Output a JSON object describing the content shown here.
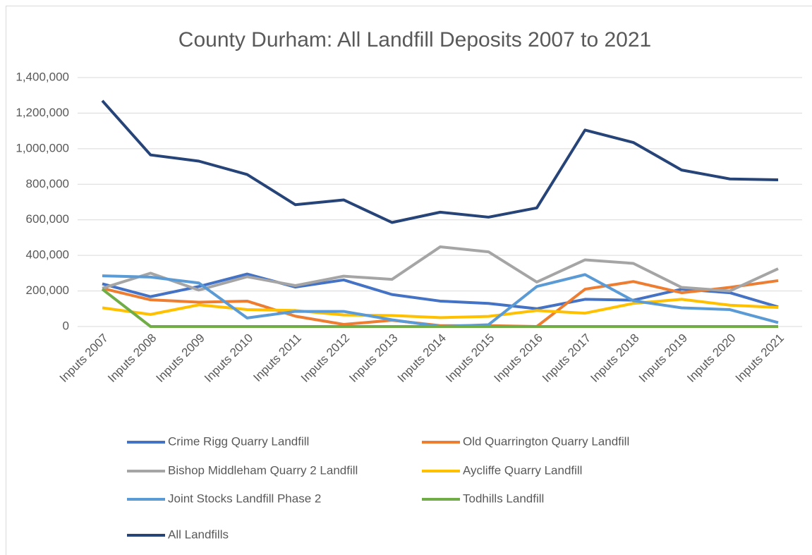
{
  "chart_data": {
    "type": "line",
    "title": "County Durham: All Landfill Deposits 2007 to 2021",
    "categories": [
      "Inputs 2007",
      "Inputs 2008",
      "Inputs 2009",
      "Inputs 2010",
      "Inputs 2011",
      "Inputs 2012",
      "Inputs 2013",
      "Inputs 2014",
      "Inputs 2015",
      "Inputs 2016",
      "Inputs 2017",
      "Inputs 2018",
      "Inputs 2019",
      "Inputs 2020",
      "Inputs 2021"
    ],
    "series": [
      {
        "name": "Crime Rigg Quarry Landfill",
        "color": "#4472c4",
        "values": [
          240000,
          168000,
          225000,
          295000,
          222000,
          262000,
          180000,
          143000,
          130000,
          100000,
          153000,
          148000,
          210000,
          190000,
          110000
        ]
      },
      {
        "name": "Old Quarrington Quarry Landfill",
        "color": "#ed7d31",
        "values": [
          215000,
          150000,
          137000,
          143000,
          58000,
          12000,
          35000,
          5000,
          5000,
          0,
          210000,
          253000,
          190000,
          220000,
          258000
        ]
      },
      {
        "name": "Bishop Middleham Quarry 2 Landfill",
        "color": "#a5a5a5",
        "values": [
          215000,
          300000,
          205000,
          280000,
          230000,
          283000,
          265000,
          448000,
          420000,
          250000,
          375000,
          355000,
          220000,
          200000,
          325000
        ]
      },
      {
        "name": "Aycliffe Quarry Landfill",
        "color": "#ffc000",
        "values": [
          105000,
          68000,
          122000,
          95000,
          90000,
          65000,
          62000,
          50000,
          57000,
          90000,
          75000,
          130000,
          153000,
          120000,
          107000
        ]
      },
      {
        "name": "Joint Stocks Landfill Phase 2",
        "color": "#5b9bd5",
        "values": [
          285000,
          278000,
          245000,
          48000,
          85000,
          85000,
          38000,
          0,
          10000,
          225000,
          292000,
          145000,
          105000,
          95000,
          22000
        ]
      },
      {
        "name": "Todhills Landfill",
        "color": "#70ad47",
        "values": [
          210000,
          0,
          0,
          0,
          0,
          0,
          0,
          0,
          0,
          0,
          0,
          0,
          0,
          0,
          0
        ]
      },
      {
        "name": "All Landfills",
        "color": "#264478",
        "values": [
          1270000,
          965000,
          930000,
          855000,
          685000,
          712000,
          585000,
          643000,
          615000,
          667000,
          1105000,
          1035000,
          880000,
          830000,
          825000
        ]
      }
    ],
    "ylim": [
      0,
      1400000
    ],
    "yticks": [
      0,
      {
        "value": 200000,
        "label": "200,000"
      },
      {
        "value": 400000,
        "label": "400,000"
      },
      {
        "value": 600000,
        "label": "600,000"
      },
      {
        "value": 800000,
        "label": "800,000"
      },
      {
        "value": 1000000,
        "label": "1,000,000"
      },
      {
        "value": 1200000,
        "label": "1,200,000"
      },
      {
        "value": 1400000,
        "label": "1,400,000"
      }
    ],
    "grid": true,
    "legend": "bottom"
  }
}
